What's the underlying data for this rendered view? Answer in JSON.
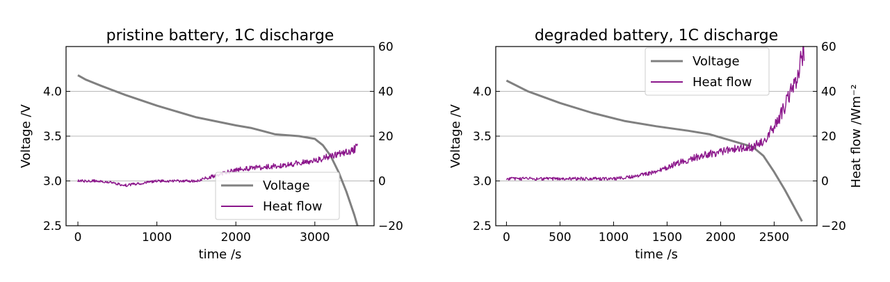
{
  "chart_data": [
    {
      "type": "line",
      "title": "pristine battery, 1C discharge",
      "xlabel": "time /s",
      "ylabel": "Voltage /V",
      "y2label": "",
      "xlim": [
        -150,
        3750
      ],
      "ylim": [
        2.5,
        4.5
      ],
      "y2lim": [
        -20,
        60
      ],
      "xticks": [
        0,
        1000,
        2000,
        3000
      ],
      "yticks": [
        2.5,
        3.0,
        3.5,
        4.0
      ],
      "y2ticks": [
        -20,
        0,
        20,
        40,
        60
      ],
      "grid": "horizontal",
      "legend": {
        "position": "lower-center",
        "entries": [
          "Voltage",
          "Heat flow"
        ]
      },
      "series": [
        {
          "name": "Voltage",
          "axis": "left",
          "color": "#808080",
          "x": [
            0,
            100,
            300,
            600,
            1000,
            1500,
            2000,
            2200,
            2500,
            2800,
            3000,
            3100,
            3200,
            3300,
            3400,
            3500,
            3540
          ],
          "y": [
            4.18,
            4.13,
            4.06,
            3.96,
            3.84,
            3.71,
            3.62,
            3.59,
            3.52,
            3.5,
            3.47,
            3.4,
            3.28,
            3.1,
            2.88,
            2.62,
            2.5
          ]
        },
        {
          "name": "Heat flow",
          "axis": "right",
          "color": "#8b168b",
          "noisy": true,
          "x": [
            0,
            300,
            600,
            1000,
            1500,
            1700,
            2000,
            2300,
            2600,
            2800,
            3000,
            3200,
            3400,
            3500,
            3540
          ],
          "y": [
            0,
            0,
            -2,
            0,
            0,
            2,
            5,
            6,
            7,
            8,
            9,
            11,
            13,
            14,
            16
          ]
        }
      ]
    },
    {
      "type": "line",
      "title": "degraded battery, 1C discharge",
      "xlabel": "time /s",
      "ylabel": "Voltage /V",
      "y2label": "Heat flow /Wm⁻²",
      "xlim": [
        -100,
        2900
      ],
      "ylim": [
        2.5,
        4.5
      ],
      "y2lim": [
        -20,
        60
      ],
      "xticks": [
        0,
        500,
        1000,
        1500,
        2000,
        2500
      ],
      "yticks": [
        2.5,
        3.0,
        3.5,
        4.0
      ],
      "y2ticks": [
        -20,
        0,
        20,
        40,
        60
      ],
      "grid": "horizontal",
      "legend": {
        "position": "top-center",
        "entries": [
          "Voltage",
          "Heat flow"
        ]
      },
      "series": [
        {
          "name": "Voltage",
          "axis": "left",
          "color": "#808080",
          "x": [
            0,
            200,
            500,
            800,
            1100,
            1400,
            1700,
            1900,
            2100,
            2300,
            2400,
            2500,
            2600,
            2700,
            2760
          ],
          "y": [
            4.12,
            4.0,
            3.87,
            3.76,
            3.67,
            3.61,
            3.56,
            3.52,
            3.45,
            3.38,
            3.28,
            3.1,
            2.9,
            2.68,
            2.55
          ]
        },
        {
          "name": "Heat flow",
          "axis": "right",
          "color": "#8b168b",
          "noisy": true,
          "x": [
            0,
            500,
            1000,
            1200,
            1400,
            1600,
            1800,
            2000,
            2200,
            2300,
            2400,
            2500,
            2600,
            2700,
            2780
          ],
          "y": [
            1,
            1,
            1,
            2,
            4,
            8,
            11,
            13,
            15,
            15,
            18,
            24,
            33,
            45,
            58
          ]
        }
      ]
    }
  ]
}
